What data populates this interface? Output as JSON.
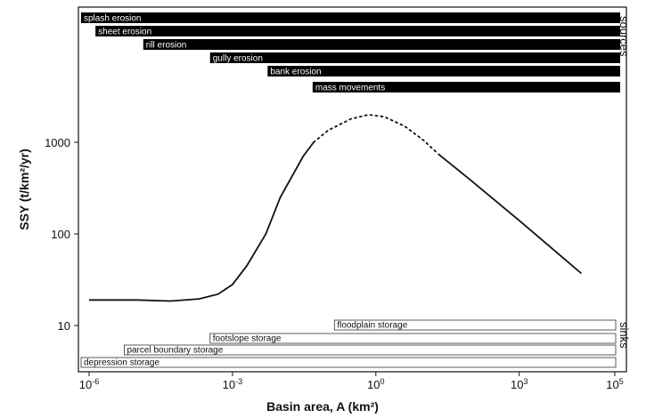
{
  "chart_data": {
    "type": "line",
    "xlabel": "Basin area, A (km²)",
    "ylabel": "SSY (t/km²/yr)",
    "xscale": "log",
    "yscale": "log",
    "xlim": [
      1e-06,
      100000
    ],
    "ylim": [
      5,
      10000
    ],
    "x_ticks": [
      {
        "value": 1e-06,
        "base": "10",
        "exp": "-6"
      },
      {
        "value": 0.001,
        "base": "10",
        "exp": "-3"
      },
      {
        "value": 1,
        "base": "10",
        "exp": "0"
      },
      {
        "value": 1000,
        "base": "10",
        "exp": "3"
      },
      {
        "value": 100000,
        "base": "10",
        "exp": "5"
      }
    ],
    "y_ticks": [
      {
        "value": 10,
        "label": "10"
      },
      {
        "value": 100,
        "label": "100"
      },
      {
        "value": 1000,
        "label": "1000"
      }
    ],
    "series": [
      {
        "style": "solid",
        "points": [
          [
            1e-06,
            19
          ],
          [
            1e-05,
            19
          ],
          [
            5e-05,
            18.5
          ],
          [
            0.0002,
            19.5
          ],
          [
            0.0005,
            22
          ],
          [
            0.001,
            28
          ],
          [
            0.002,
            45
          ],
          [
            0.005,
            100
          ],
          [
            0.01,
            250
          ],
          [
            0.03,
            700
          ],
          [
            0.05,
            1000
          ]
        ]
      },
      {
        "style": "dotted",
        "points": [
          [
            0.05,
            1000
          ],
          [
            0.1,
            1350
          ],
          [
            0.3,
            1800
          ],
          [
            0.7,
            2000
          ],
          [
            1.5,
            1900
          ],
          [
            4,
            1500
          ],
          [
            10,
            1050
          ],
          [
            20,
            750
          ]
        ]
      },
      {
        "style": "solid",
        "points": [
          [
            20,
            750
          ],
          [
            100,
            380
          ],
          [
            1000,
            140
          ],
          [
            20000,
            37
          ]
        ]
      }
    ],
    "sources": {
      "side_label": "sources",
      "bars": [
        {
          "label": "splash erosion",
          "x_start": 1e-06
        },
        {
          "label": "sheet erosion",
          "x_start": 2e-06
        },
        {
          "label": "rill erosion",
          "x_start": 2e-05
        },
        {
          "label": "gully erosion",
          "x_start": 0.0005
        },
        {
          "label": "bank erosion",
          "x_start": 0.008
        },
        {
          "label": "mass movements",
          "x_start": 0.07
        }
      ]
    },
    "sinks": {
      "side_label": "sinks",
      "bars": [
        {
          "label": "floodplain storage",
          "x_start": 0.2
        },
        {
          "label": "footslope storage",
          "x_start": 0.0005
        },
        {
          "label": "parcel boundary storage",
          "x_start": 8e-06
        },
        {
          "label": "depression storage",
          "x_start": 1e-06
        }
      ]
    }
  }
}
